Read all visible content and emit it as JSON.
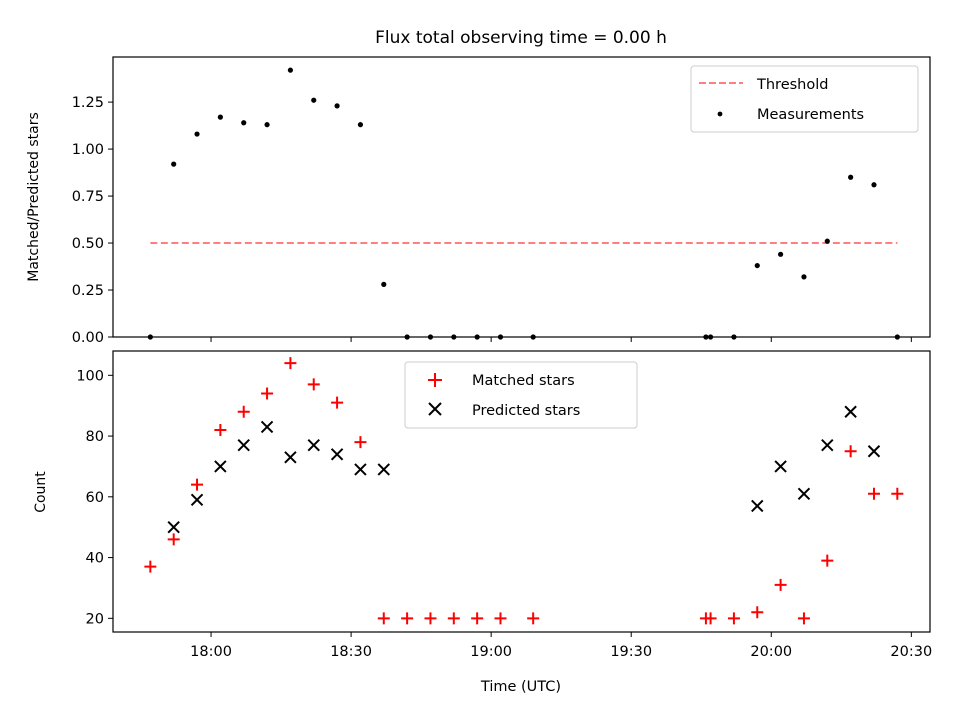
{
  "title": "Flux total observing time = 0.00 h",
  "xlabel": "Time (UTC)",
  "x_ticks": [
    "18:00",
    "18:30",
    "19:00",
    "19:30",
    "20:00",
    "20:30"
  ],
  "colors": {
    "threshold": "#ff7f7f",
    "measurement": "#000000",
    "matched": "#ff0000",
    "predicted": "#000000"
  },
  "chart_data": [
    {
      "type": "scatter",
      "ylabel": "Matched/Predicted stars",
      "ylim": [
        0,
        1.49
      ],
      "y_ticks": [
        "0.00",
        "0.25",
        "0.50",
        "0.75",
        "1.00",
        "1.25"
      ],
      "x_range": [
        "17:39",
        "20:34"
      ],
      "grid": false,
      "legend": {
        "position": "top-right",
        "entries": [
          "Threshold",
          "Measurements"
        ]
      },
      "series": [
        {
          "name": "Threshold",
          "style": "dashed-line",
          "x": [
            "17:47",
            "20:27"
          ],
          "y": [
            0.5,
            0.5
          ]
        },
        {
          "name": "Measurements",
          "style": "dot",
          "x": [
            "17:47",
            "17:52",
            "17:57",
            "18:02",
            "18:07",
            "18:12",
            "18:17",
            "18:22",
            "18:27",
            "18:32",
            "18:37",
            "18:42",
            "18:47",
            "18:52",
            "18:57",
            "19:02",
            "19:09",
            "19:46",
            "19:47",
            "19:52",
            "19:57",
            "20:02",
            "20:07",
            "20:12",
            "20:17",
            "20:22",
            "20:27"
          ],
          "y": [
            0.0,
            0.92,
            1.08,
            1.17,
            1.14,
            1.13,
            1.42,
            1.26,
            1.23,
            1.13,
            0.28,
            0.0,
            0.0,
            0.0,
            0.0,
            0.0,
            0.0,
            0.0,
            0.0,
            0.0,
            0.38,
            0.44,
            0.32,
            0.51,
            0.85,
            0.81,
            0.0
          ]
        }
      ]
    },
    {
      "type": "scatter",
      "ylabel": "Count",
      "ylim": [
        15.5,
        108
      ],
      "y_ticks": [
        "20",
        "40",
        "60",
        "80",
        "100"
      ],
      "x_range": [
        "17:39",
        "20:34"
      ],
      "grid": false,
      "legend": {
        "position": "top-center",
        "entries": [
          "Matched stars",
          "Predicted stars"
        ]
      },
      "series": [
        {
          "name": "Matched stars",
          "marker": "+",
          "x": [
            "17:47",
            "17:52",
            "17:57",
            "18:02",
            "18:07",
            "18:12",
            "18:17",
            "18:22",
            "18:27",
            "18:32",
            "18:37",
            "18:42",
            "18:47",
            "18:52",
            "18:57",
            "19:02",
            "19:09",
            "19:46",
            "19:47",
            "19:52",
            "19:57",
            "20:02",
            "20:07",
            "20:12",
            "20:17",
            "20:22",
            "20:27"
          ],
          "y": [
            37,
            46,
            64,
            82,
            88,
            94,
            104,
            97,
            91,
            78,
            20,
            20,
            20,
            20,
            20,
            20,
            20,
            20,
            20,
            20,
            22,
            31,
            20,
            39,
            75,
            61,
            61
          ]
        },
        {
          "name": "Predicted stars",
          "marker": "x",
          "x": [
            "17:52",
            "17:57",
            "18:02",
            "18:07",
            "18:12",
            "18:17",
            "18:22",
            "18:27",
            "18:32",
            "18:37",
            "19:57",
            "20:02",
            "20:07",
            "20:12",
            "20:17",
            "20:22"
          ],
          "y": [
            50,
            59,
            70,
            77,
            83,
            73,
            77,
            74,
            69,
            69,
            57,
            70,
            61,
            77,
            88,
            75
          ]
        }
      ]
    }
  ]
}
